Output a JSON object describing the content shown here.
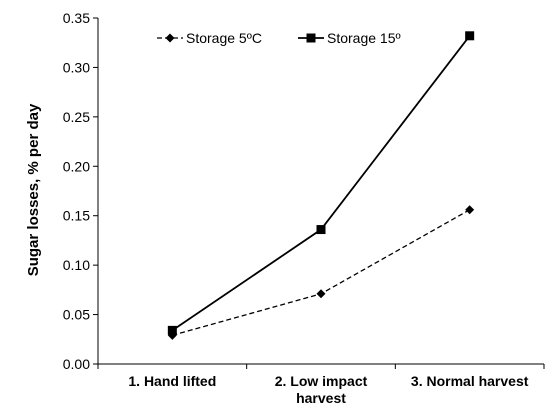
{
  "chart_data": {
    "type": "line",
    "title": "",
    "xlabel": "",
    "ylabel": "Sugar losses, % per day",
    "categories": [
      [
        "1. Hand lifted"
      ],
      [
        "2. Low impact",
        "harvest"
      ],
      [
        "3. Normal harvest"
      ]
    ],
    "ylim": [
      0,
      0.35
    ],
    "yticks": [
      "0.00",
      "0.05",
      "0.10",
      "0.15",
      "0.20",
      "0.25",
      "0.30",
      "0.35"
    ],
    "grid": false,
    "legend_position": "top",
    "series": [
      {
        "name": "Storage 5ºC",
        "values": [
          0.029,
          0.071,
          0.156
        ],
        "line_style": "dashed",
        "marker": "diamond",
        "color": "#000000"
      },
      {
        "name": "Storage 15º",
        "values": [
          0.034,
          0.136,
          0.332
        ],
        "line_style": "solid",
        "marker": "square",
        "color": "#000000"
      }
    ]
  }
}
